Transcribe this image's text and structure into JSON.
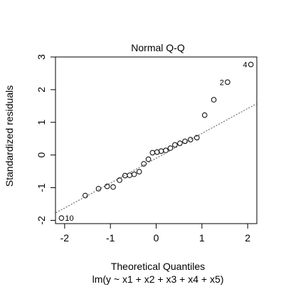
{
  "chart_data": {
    "type": "scatter",
    "title": "Normal Q-Q",
    "xlabel": "Theoretical Quantiles",
    "subtitle": "lm(y ~ x1 + x2 + x3 + x4 + x5)",
    "ylabel": "Standardized residuals",
    "xlim": [
      -2.2,
      2.2
    ],
    "ylim": [
      -2.1,
      3.0
    ],
    "xticks": [
      -2,
      -1,
      0,
      1,
      2
    ],
    "xtick_labels": [
      "-2",
      "-1",
      "0",
      "1",
      "2"
    ],
    "yticks": [
      -2,
      -1,
      0,
      1,
      2,
      3
    ],
    "ytick_labels": [
      "-2",
      "-1",
      "0",
      "1",
      "2",
      "3"
    ],
    "grid": false,
    "points": [
      {
        "x": -2.07,
        "y": -1.93
      },
      {
        "x": -1.55,
        "y": -1.24
      },
      {
        "x": -1.26,
        "y": -1.03
      },
      {
        "x": -1.07,
        "y": -0.96
      },
      {
        "x": -0.94,
        "y": -0.98
      },
      {
        "x": -0.8,
        "y": -0.77
      },
      {
        "x": -0.68,
        "y": -0.63
      },
      {
        "x": -0.58,
        "y": -0.62
      },
      {
        "x": -0.48,
        "y": -0.59
      },
      {
        "x": -0.37,
        "y": -0.51
      },
      {
        "x": -0.27,
        "y": -0.27
      },
      {
        "x": -0.17,
        "y": -0.13
      },
      {
        "x": -0.08,
        "y": 0.07
      },
      {
        "x": 0.02,
        "y": 0.09
      },
      {
        "x": 0.11,
        "y": 0.12
      },
      {
        "x": 0.21,
        "y": 0.14
      },
      {
        "x": 0.31,
        "y": 0.21
      },
      {
        "x": 0.41,
        "y": 0.31
      },
      {
        "x": 0.52,
        "y": 0.36
      },
      {
        "x": 0.63,
        "y": 0.42
      },
      {
        "x": 0.75,
        "y": 0.47
      },
      {
        "x": 0.89,
        "y": 0.53
      },
      {
        "x": 1.06,
        "y": 1.22
      },
      {
        "x": 1.26,
        "y": 1.69
      },
      {
        "x": 1.56,
        "y": 2.23
      },
      {
        "x": 2.07,
        "y": 2.77
      }
    ],
    "point_labels": [
      {
        "x": -2.07,
        "y": -1.93,
        "text": "10",
        "side": "right"
      },
      {
        "x": 1.56,
        "y": 2.23,
        "text": "2",
        "side": "left"
      },
      {
        "x": 2.07,
        "y": 2.77,
        "text": "4",
        "side": "left"
      }
    ],
    "reference_line": {
      "style": "dotted",
      "from": [
        -2.3,
        -1.85
      ],
      "to": [
        2.3,
        1.65
      ]
    }
  }
}
